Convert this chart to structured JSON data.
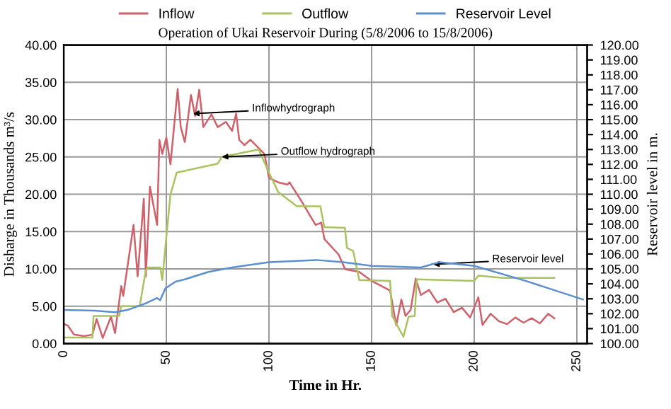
{
  "chart_data": {
    "type": "line",
    "title": "Operation of Ukai Reservoir During (5/8/2006 to 15/8/2006)",
    "xlabel": "Time in Hr.",
    "ylabel": "Disharge in Thousands m³/s",
    "y2label": "Reservoir level in m.",
    "xlim": [
      0,
      255
    ],
    "xticks": [
      0,
      50,
      100,
      150,
      200,
      250
    ],
    "ylim": [
      0,
      40
    ],
    "yticks": [
      {
        "value": 0,
        "label": "0.00"
      },
      {
        "value": 5,
        "label": "5.00"
      },
      {
        "value": 10,
        "label": "10.00"
      },
      {
        "value": 15,
        "label": "15.00"
      },
      {
        "value": 20,
        "label": "20.00"
      },
      {
        "value": 25,
        "label": "25.00"
      },
      {
        "value": 30,
        "label": "30.00"
      },
      {
        "value": 35,
        "label": "35.00"
      },
      {
        "value": 40,
        "label": "40.00"
      }
    ],
    "y2lim": [
      100,
      120
    ],
    "y2ticks": [
      {
        "value": 100,
        "label": "100.00"
      },
      {
        "value": 101,
        "label": "101.00"
      },
      {
        "value": 102,
        "label": "102.00"
      },
      {
        "value": 103,
        "label": "103.00"
      },
      {
        "value": 104,
        "label": "104.00"
      },
      {
        "value": 105,
        "label": "105.00"
      },
      {
        "value": 106,
        "label": "106.00"
      },
      {
        "value": 107,
        "label": "107.00"
      },
      {
        "value": 108,
        "label": "108.00"
      },
      {
        "value": 109,
        "label": "109.00"
      },
      {
        "value": 110,
        "label": "110.00"
      },
      {
        "value": 111,
        "label": "111.00"
      },
      {
        "value": 112,
        "label": "112.00"
      },
      {
        "value": 113,
        "label": "113.00"
      },
      {
        "value": 114,
        "label": "114.00"
      },
      {
        "value": 115,
        "label": "115.00"
      },
      {
        "value": 116,
        "label": "116.00"
      },
      {
        "value": 117,
        "label": "117.00"
      },
      {
        "value": 118,
        "label": "118.00"
      },
      {
        "value": 119,
        "label": "119.00"
      },
      {
        "value": 120,
        "label": "120.00"
      }
    ],
    "grid": true,
    "legend": "top",
    "marker": "none",
    "line_style": "solid",
    "series": [
      {
        "name": "Inflow",
        "color": "#d0606a",
        "x": [
          0,
          2,
          5,
          10,
          14,
          16,
          19,
          23,
          25,
          28,
          29,
          32,
          34,
          36,
          39,
          40,
          42,
          45.5,
          46.6,
          48,
          50,
          52,
          55.5,
          57,
          59,
          62,
          64,
          66,
          68,
          72,
          75,
          79,
          82,
          84,
          85.5,
          88,
          91,
          97.8,
          100,
          104.5,
          109,
          110,
          116,
          122.7,
          125.5,
          127,
          134,
          137,
          138,
          144,
          150,
          159,
          162,
          164.5,
          166.5,
          169,
          171.5,
          174,
          178,
          182,
          186,
          190,
          194,
          198,
          202,
          204,
          208,
          212,
          216,
          220,
          224,
          228,
          232,
          236,
          239
        ],
        "values": [
          2.65,
          2.4,
          1.2,
          1.0,
          1.2,
          3.3,
          0.75,
          3.6,
          1.4,
          7.7,
          6.4,
          12.1,
          15.9,
          9,
          19.4,
          9,
          21,
          15.9,
          27.3,
          25.4,
          27.6,
          24,
          34.1,
          29,
          27,
          33.3,
          30.5,
          34,
          29,
          30.7,
          29,
          29.7,
          28.5,
          30.8,
          27.3,
          26.6,
          27.3,
          25.4,
          22.2,
          21.6,
          21.3,
          21.6,
          19,
          15.9,
          16.2,
          14,
          11.9,
          10,
          9.9,
          9.6,
          8.4,
          7.1,
          2.45,
          5.9,
          3.7,
          4.5,
          8.7,
          6.5,
          7.2,
          5.5,
          6,
          4.2,
          4.8,
          3.5,
          6.2,
          2.5,
          4,
          3,
          2.6,
          3.5,
          2.8,
          3.4,
          2.7,
          4,
          3.4
        ]
      },
      {
        "name": "Outflow",
        "color": "#a9c35f",
        "x": [
          0,
          14,
          14.5,
          27,
          28,
          37,
          40,
          41,
          47,
          48,
          50,
          52,
          53.4,
          55,
          75,
          77,
          95,
          100,
          104.5,
          113.6,
          125,
          127,
          137,
          138,
          141,
          144,
          159,
          160,
          165.5,
          168,
          171,
          172,
          200,
          202,
          214,
          239
        ],
        "values": [
          0.8,
          0.8,
          3.7,
          3.7,
          5.0,
          5.0,
          9.8,
          10.2,
          10.2,
          8.5,
          14.3,
          20,
          21.3,
          22.9,
          24.1,
          25,
          26,
          22.9,
          20.3,
          18.4,
          18.4,
          15.6,
          15.5,
          12.8,
          12.4,
          8.5,
          8.4,
          3.7,
          0.9,
          3.6,
          3.7,
          8.6,
          8.4,
          9.1,
          8.8,
          8.8
        ]
      },
      {
        "name": "Reservoir Level",
        "color": "#5b8fd0",
        "axis": "y2",
        "x": [
          0,
          15,
          25,
          31,
          40,
          45.5,
          47,
          49.5,
          54.5,
          59,
          70.5,
          82,
          100,
          123,
          136,
          150,
          174,
          183,
          200,
          225,
          253
        ],
        "values": [
          102.25,
          102.2,
          102.1,
          102.25,
          102.7,
          103.05,
          102.9,
          103.7,
          104.15,
          104.3,
          104.8,
          105.1,
          105.45,
          105.6,
          105.45,
          105.2,
          105.1,
          105.45,
          105.2,
          104.2,
          102.95
        ]
      }
    ],
    "annotations": [
      {
        "text": "Inflowhydrograph",
        "x": 63,
        "y": 30.8
      },
      {
        "text": "Outflow hydrograph",
        "x": 77,
        "y": 25
      },
      {
        "text": "Reservoir level",
        "x": 180,
        "y": 10.6
      }
    ]
  }
}
